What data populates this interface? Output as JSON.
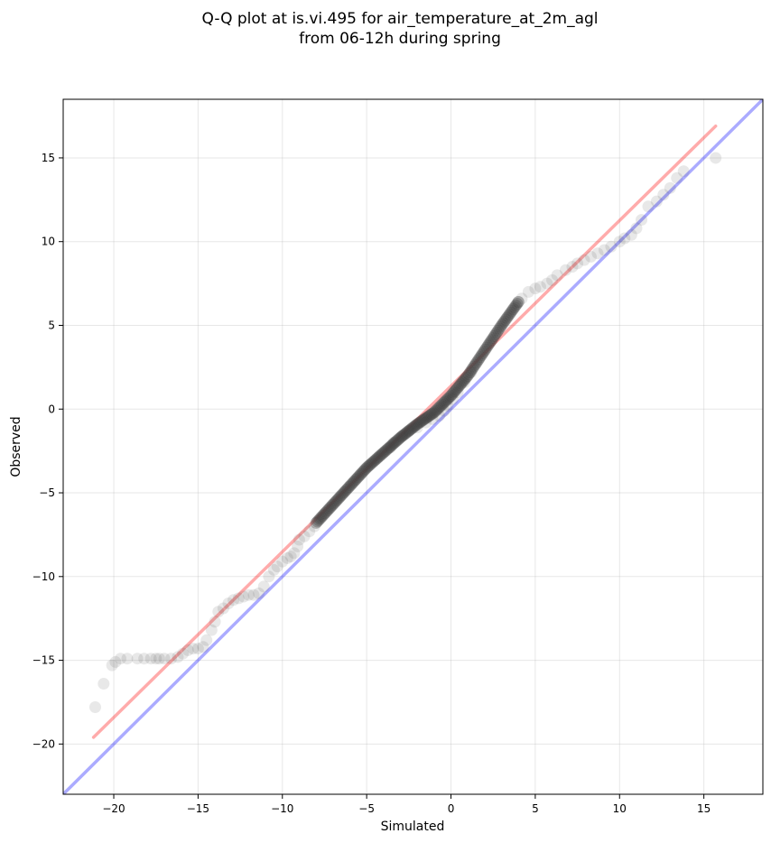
{
  "chart_data": {
    "type": "scatter",
    "title_line1": "Q-Q plot at is.vi.495 for air_temperature_at_2m_agl",
    "title_line2": "from 06-12h during spring",
    "xlabel": "Simulated",
    "ylabel": "Observed",
    "xlim": [
      -23,
      18.5
    ],
    "ylim": [
      -23,
      18.5
    ],
    "xticks": [
      -20,
      -15,
      -10,
      -5,
      0,
      5,
      10,
      15
    ],
    "yticks": [
      -20,
      -15,
      -10,
      -5,
      0,
      5,
      10,
      15
    ],
    "xtick_labels": [
      "−20",
      "−15",
      "−10",
      "−5",
      "0",
      "5",
      "10",
      "15"
    ],
    "ytick_labels": [
      "−20",
      "−15",
      "−10",
      "−5",
      "0",
      "5",
      "10",
      "15"
    ],
    "grid": true,
    "reference_line": {
      "x": [
        -23,
        18.5
      ],
      "y": [
        -23,
        18.5
      ],
      "color": "#0000ff"
    },
    "fit_line": {
      "x": [
        -21.2,
        15.7
      ],
      "y": [
        -19.6,
        16.9
      ],
      "color": "#ff0000"
    },
    "sparse_points": [
      [
        -21.1,
        -17.8
      ],
      [
        -20.6,
        -16.4
      ],
      [
        -20.1,
        -15.3
      ],
      [
        -19.9,
        -15.1
      ],
      [
        -19.6,
        -14.9
      ],
      [
        -19.2,
        -14.9
      ],
      [
        -18.6,
        -14.9
      ],
      [
        -18.2,
        -14.9
      ],
      [
        -17.8,
        -14.9
      ],
      [
        -17.5,
        -14.9
      ],
      [
        -17.3,
        -14.9
      ],
      [
        -17.0,
        -14.9
      ],
      [
        -16.6,
        -14.9
      ],
      [
        -16.2,
        -14.8
      ],
      [
        -15.9,
        -14.6
      ],
      [
        -15.6,
        -14.4
      ],
      [
        -15.3,
        -14.3
      ],
      [
        -15.0,
        -14.3
      ],
      [
        -14.7,
        -14.2
      ],
      [
        -14.5,
        -13.8
      ],
      [
        -14.2,
        -13.2
      ],
      [
        -14.0,
        -12.7
      ],
      [
        -13.8,
        -12.1
      ],
      [
        -13.5,
        -11.9
      ],
      [
        -13.2,
        -11.6
      ],
      [
        -12.9,
        -11.4
      ],
      [
        -12.6,
        -11.3
      ],
      [
        -12.3,
        -11.2
      ],
      [
        -12.0,
        -11.1
      ],
      [
        -11.7,
        -11.1
      ],
      [
        -11.4,
        -11.0
      ],
      [
        -11.1,
        -10.6
      ],
      [
        -10.8,
        -10.0
      ],
      [
        -10.5,
        -9.6
      ],
      [
        -10.3,
        -9.4
      ],
      [
        -10.0,
        -9.1
      ],
      [
        -9.7,
        -8.9
      ],
      [
        -9.5,
        -8.8
      ],
      [
        -9.3,
        -8.6
      ],
      [
        -9.1,
        -8.2
      ],
      [
        -9.0,
        -7.8
      ],
      [
        -8.7,
        -7.6
      ],
      [
        -8.4,
        -7.3
      ],
      [
        -8.1,
        -7.0
      ],
      [
        -3.6,
        -2.3
      ],
      [
        -3.4,
        -2.0
      ],
      [
        -2.9,
        -1.6
      ],
      [
        -2.5,
        -1.3
      ],
      [
        -2.0,
        -1.1
      ],
      [
        -1.5,
        -0.8
      ],
      [
        -1.1,
        -0.6
      ],
      [
        -0.7,
        -0.4
      ],
      [
        -0.4,
        -0.1
      ],
      [
        -0.2,
        0.2
      ],
      [
        0.1,
        0.6
      ],
      [
        0.4,
        1.0
      ],
      [
        0.8,
        1.6
      ],
      [
        1.2,
        2.2
      ],
      [
        4.0,
        6.4
      ],
      [
        4.2,
        6.6
      ],
      [
        4.6,
        7.0
      ],
      [
        5.0,
        7.2
      ],
      [
        5.3,
        7.3
      ],
      [
        5.7,
        7.5
      ],
      [
        6.0,
        7.7
      ],
      [
        6.3,
        8.0
      ],
      [
        6.8,
        8.3
      ],
      [
        7.2,
        8.5
      ],
      [
        7.5,
        8.7
      ],
      [
        7.9,
        8.9
      ],
      [
        8.3,
        9.1
      ],
      [
        8.7,
        9.3
      ],
      [
        9.1,
        9.5
      ],
      [
        9.5,
        9.7
      ],
      [
        10.0,
        10.0
      ],
      [
        10.3,
        10.2
      ],
      [
        10.7,
        10.4
      ],
      [
        11.0,
        10.8
      ],
      [
        11.3,
        11.3
      ],
      [
        11.7,
        12.1
      ],
      [
        12.2,
        12.4
      ],
      [
        12.6,
        12.8
      ],
      [
        13.0,
        13.2
      ],
      [
        13.4,
        13.8
      ],
      [
        13.8,
        14.2
      ],
      [
        15.7,
        15.0
      ]
    ],
    "dense_band": {
      "x_start": -8.0,
      "x_end": 4.0,
      "count": 160,
      "knots": [
        [
          -8.0,
          -6.8
        ],
        [
          -7.0,
          -5.7
        ],
        [
          -6.0,
          -4.6
        ],
        [
          -5.0,
          -3.5
        ],
        [
          -4.0,
          -2.6
        ],
        [
          -3.0,
          -1.7
        ],
        [
          -2.0,
          -0.9
        ],
        [
          -1.0,
          -0.2
        ],
        [
          0.0,
          0.8
        ],
        [
          1.0,
          2.0
        ],
        [
          2.0,
          3.5
        ],
        [
          3.0,
          5.0
        ],
        [
          4.0,
          6.4
        ]
      ]
    },
    "point_color": "#444444"
  }
}
